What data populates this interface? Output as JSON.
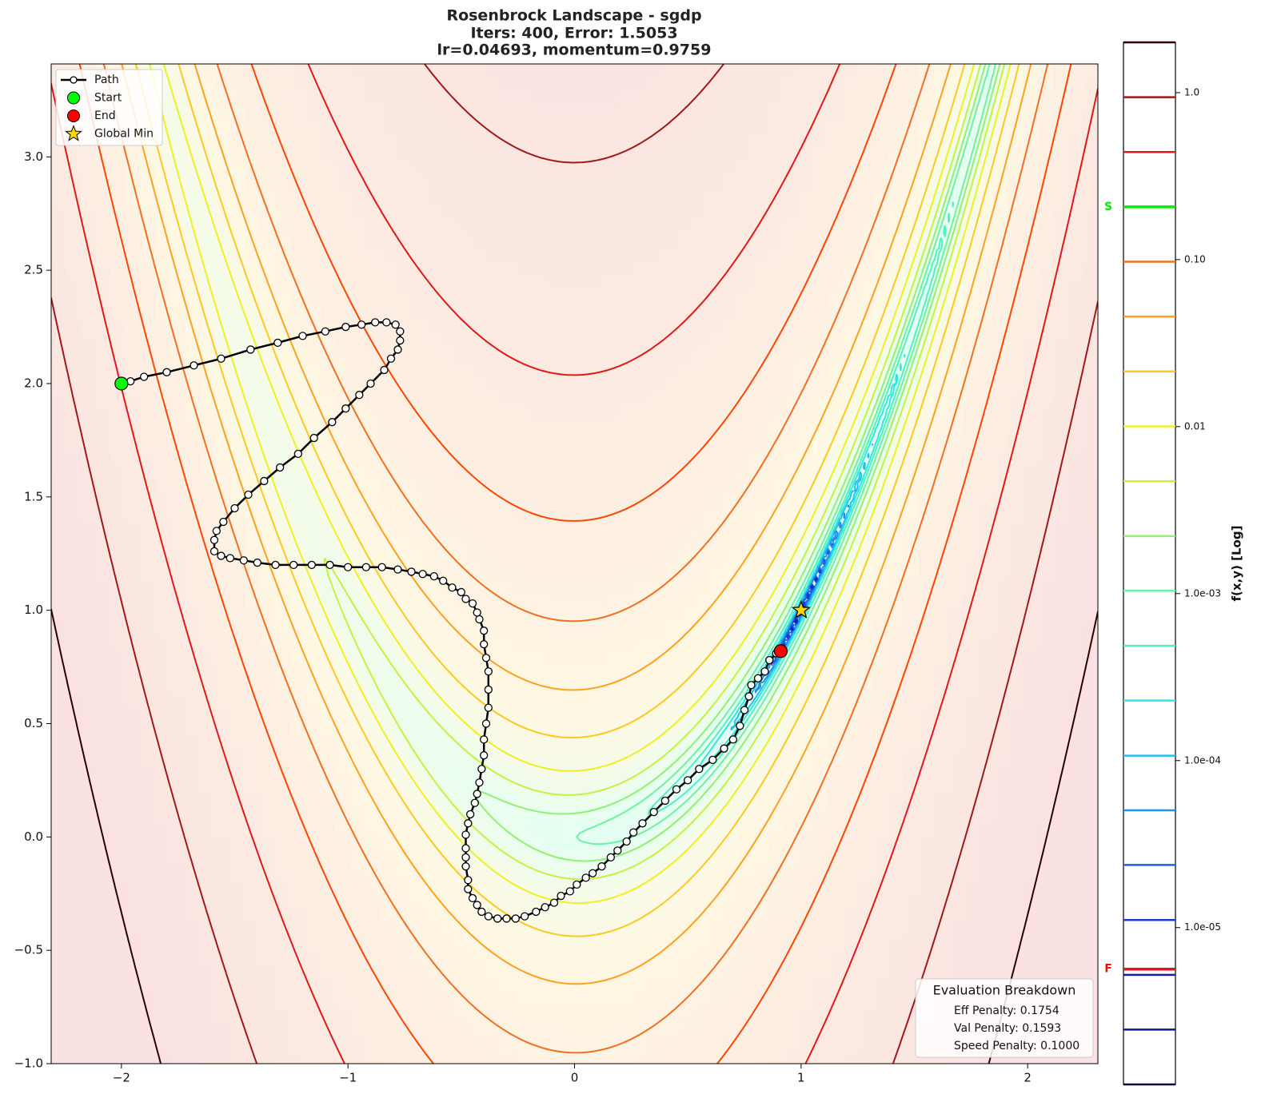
{
  "chart_data": {
    "type": "contour",
    "title": "Rosenbrock Landscape - sgdp",
    "subtitle": [
      "Iters: 400, Error: 1.5053",
      "lr=0.04693, momentum=0.9759"
    ],
    "xlim": [
      -2.31,
      2.31
    ],
    "ylim": [
      -1,
      3.41
    ],
    "xticks": [
      {
        "value": -2,
        "label": "−2"
      },
      {
        "value": -1,
        "label": "−1"
      },
      0,
      1,
      2
    ],
    "yticks": [
      {
        "value": -1,
        "label": "−1.0"
      },
      {
        "value": -0.5,
        "label": "−0.5"
      },
      {
        "value": 0,
        "label": "0.0"
      },
      0.5,
      {
        "value": 1,
        "label": "1.0"
      },
      1.5,
      {
        "value": 2,
        "label": "2.0"
      },
      2.5,
      {
        "value": 3,
        "label": "3.0"
      }
    ],
    "legend": "upper left",
    "series": [
      {
        "name": "Path",
        "color": "#000000",
        "marker": "circle",
        "x": [
          -2.0,
          -1.96,
          -1.9,
          -1.8,
          -1.68,
          -1.56,
          -1.43,
          -1.31,
          -1.2,
          -1.1,
          -1.01,
          -0.94,
          -0.88,
          -0.83,
          -0.79,
          -0.77,
          -0.77,
          -0.78,
          -0.81,
          -0.84,
          -0.9,
          -0.95,
          -1.01,
          -1.07,
          -1.15,
          -1.22,
          -1.3,
          -1.37,
          -1.44,
          -1.5,
          -1.55,
          -1.58,
          -1.59,
          -1.59,
          -1.56,
          -1.52,
          -1.46,
          -1.4,
          -1.32,
          -1.24,
          -1.16,
          -1.08,
          -1.0,
          -0.92,
          -0.85,
          -0.78,
          -0.72,
          -0.67,
          -0.62,
          -0.58,
          -0.54,
          -0.5,
          -0.48,
          -0.45,
          -0.43,
          -0.42,
          -0.4,
          -0.4,
          -0.39,
          -0.38,
          -0.38,
          -0.38,
          -0.39,
          -0.4,
          -0.4,
          -0.41,
          -0.42,
          -0.43,
          -0.44,
          -0.46,
          -0.47,
          -0.48,
          -0.48,
          -0.48,
          -0.48,
          -0.47,
          -0.47,
          -0.45,
          -0.43,
          -0.41,
          -0.38,
          -0.34,
          -0.3,
          -0.26,
          -0.22,
          -0.17,
          -0.13,
          -0.09,
          -0.06,
          -0.02,
          0.01,
          0.05,
          0.08,
          0.12,
          0.16,
          0.19,
          0.23,
          0.26,
          0.3,
          0.35,
          0.4,
          0.45,
          0.5,
          0.55,
          0.61,
          0.66,
          0.7,
          0.73,
          0.75,
          0.77,
          0.78,
          0.81,
          0.84,
          0.86,
          0.89,
          0.91
        ],
        "values": [
          2.0,
          2.01,
          2.03,
          2.05,
          2.08,
          2.11,
          2.15,
          2.18,
          2.21,
          2.23,
          2.25,
          2.26,
          2.27,
          2.27,
          2.26,
          2.23,
          2.19,
          2.15,
          2.11,
          2.06,
          2.0,
          1.95,
          1.89,
          1.83,
          1.76,
          1.69,
          1.63,
          1.57,
          1.51,
          1.45,
          1.39,
          1.35,
          1.31,
          1.26,
          1.24,
          1.23,
          1.22,
          1.21,
          1.2,
          1.2,
          1.2,
          1.2,
          1.19,
          1.19,
          1.19,
          1.18,
          1.17,
          1.16,
          1.15,
          1.13,
          1.1,
          1.08,
          1.05,
          1.03,
          0.99,
          0.96,
          0.91,
          0.85,
          0.79,
          0.73,
          0.65,
          0.57,
          0.5,
          0.43,
          0.36,
          0.3,
          0.24,
          0.19,
          0.15,
          0.1,
          0.06,
          0.01,
          -0.05,
          -0.09,
          -0.13,
          -0.19,
          -0.23,
          -0.27,
          -0.3,
          -0.33,
          -0.35,
          -0.36,
          -0.36,
          -0.36,
          -0.35,
          -0.33,
          -0.31,
          -0.29,
          -0.26,
          -0.24,
          -0.21,
          -0.18,
          -0.16,
          -0.13,
          -0.09,
          -0.06,
          -0.02,
          0.02,
          0.06,
          0.11,
          0.16,
          0.21,
          0.25,
          0.3,
          0.34,
          0.39,
          0.43,
          0.49,
          0.56,
          0.62,
          0.67,
          0.7,
          0.73,
          0.78,
          0.81,
          0.82
        ]
      },
      {
        "name": "Start",
        "color": "#00ff00",
        "marker": "circle",
        "x": [
          -2
        ],
        "values": [
          2
        ]
      },
      {
        "name": "End",
        "color": "#ff0000",
        "marker": "circle",
        "x": [
          0.91
        ],
        "values": [
          0.82
        ]
      },
      {
        "name": "Global Min",
        "color": "#ffd700",
        "marker": "star",
        "x": [
          1
        ],
        "values": [
          1
        ]
      }
    ],
    "colorbar": {
      "label": "f(x,y) [Log]",
      "log": true,
      "lim": [
        1.15e-06,
        2.0
      ],
      "ticks": [
        {
          "value": 1,
          "label": "1.0"
        },
        {
          "value": 0.1,
          "label": "0.10"
        },
        0.01,
        {
          "value": 0.001,
          "label": "1.0e-03"
        },
        {
          "value": 0.0001,
          "label": "1.0e-04"
        },
        {
          "value": 1e-05,
          "label": "1.0e-05"
        }
      ],
      "levels": [
        2.0,
        0.939,
        0.441,
        0.207,
        0.0971,
        0.0456,
        0.0214,
        0.01004,
        0.00471,
        0.00221,
        0.00104,
        0.000487,
        0.000229,
        0.000107,
        5.04e-05,
        2.37e-05,
        1.11e-05,
        5.21e-06,
        2.45e-06,
        1.15e-06
      ],
      "level_colors": [
        "#2b0000",
        "#a01818",
        "#e01818",
        "#ff4500",
        "#f07020",
        "#ffa020",
        "#ffc820",
        "#f0f020",
        "#c8f040",
        "#90f070",
        "#70f0a0",
        "#50f0c0",
        "#30e8e0",
        "#20c0f0",
        "#2090e8",
        "#2060e0",
        "#1838d8",
        "#1020b0",
        "#101880",
        "#080840"
      ],
      "markers": [
        {
          "label": "S",
          "value": 0.207,
          "color": "#00ee00"
        },
        {
          "label": "F",
          "value": 5.64e-06,
          "color": "#ee1111"
        }
      ]
    },
    "annotation": {
      "title": "Evaluation Breakdown",
      "lines": [
        "Eff Penalty: 0.1754",
        "Val Penalty: 0.1593",
        "Speed Penalty: 0.1000"
      ]
    }
  }
}
